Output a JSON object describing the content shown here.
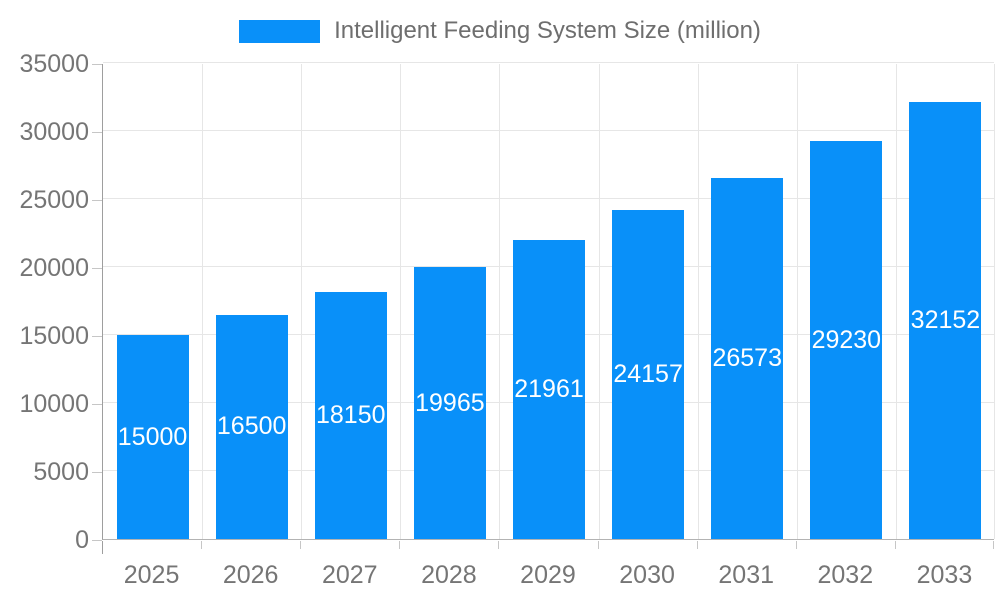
{
  "legend": {
    "label": "Intelligent Feeding System Size (million)"
  },
  "chart_data": {
    "type": "bar",
    "title": "Intelligent Feeding System Size (million)",
    "categories": [
      "2025",
      "2026",
      "2027",
      "2028",
      "2029",
      "2030",
      "2031",
      "2032",
      "2033"
    ],
    "values": [
      15000,
      16500,
      18150,
      19965,
      21961,
      24157,
      26573,
      29230,
      32152
    ],
    "xlabel": "",
    "ylabel": "",
    "ylim": [
      0,
      35000
    ],
    "yticks": [
      0,
      5000,
      10000,
      15000,
      20000,
      25000,
      30000,
      35000
    ],
    "grid": true,
    "legend_position": "top",
    "value_labels": "inside-center-white"
  },
  "colors": {
    "bar": "#0990f9",
    "grid": "#e6e6e6",
    "y_axis_line": "#9e9e9e",
    "x_axis_line": "#b3b3b3",
    "tick": "#c6c6c6",
    "axis_text": "#757575",
    "legend_text": "#6e6e6e",
    "value_text": "#ffffff",
    "background": "#ffffff"
  }
}
